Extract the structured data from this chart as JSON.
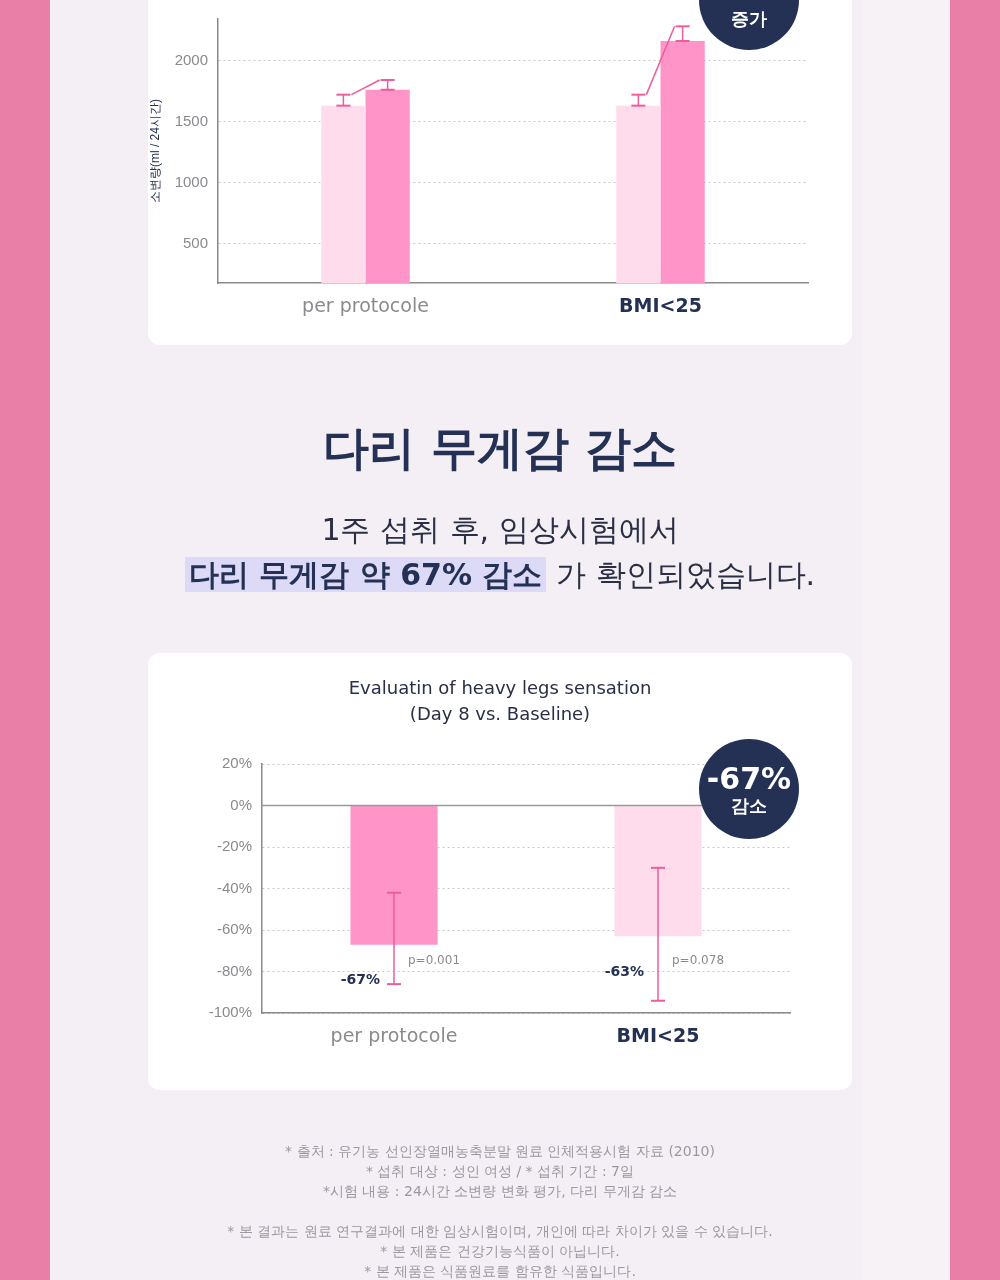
{
  "chart_data": [
    {
      "type": "bar",
      "ylabel": "소변량(ml / 24시간)",
      "categories": [
        "per protocole",
        "BMI<25"
      ],
      "series": [
        {
          "color": "#ffdcec",
          "values": [
            1630,
            1630
          ],
          "errors": [
            [
              1630,
              1720
            ],
            [
              1630,
              1720
            ]
          ]
        },
        {
          "color": "#ff94c8",
          "values": [
            1760,
            2160
          ],
          "errors": [
            [
              1760,
              1840
            ],
            [
              2160,
              2280
            ]
          ]
        }
      ],
      "ylim": [
        175,
        2340
      ],
      "yticks": [
        500,
        1000,
        1500,
        2000
      ],
      "grid": "y",
      "annotations": [
        "증가"
      ]
    },
    {
      "type": "bar",
      "title": "Evaluatin of heavy legs sensation",
      "subtitle": "(Day 8 vs. Baseline)",
      "categories": [
        "per protocole",
        "BMI<25"
      ],
      "values": [
        -67,
        -63
      ],
      "colors": [
        "#ff94c8",
        "#ffdcec"
      ],
      "errors": [
        [
          -86,
          -42
        ],
        [
          -94,
          -30
        ]
      ],
      "value_labels": [
        "-67%",
        "-63%"
      ],
      "ylim": [
        -100,
        20
      ],
      "yticks": [
        {
          "value": 20,
          "label": "20%"
        },
        {
          "value": 0,
          "label": "0%"
        },
        {
          "value": -20,
          "label": "-20%"
        },
        {
          "value": -40,
          "label": "-40%"
        },
        {
          "value": -60,
          "label": "-60%"
        },
        {
          "value": -80,
          "label": "-80%"
        },
        {
          "value": -100,
          "label": "-100%"
        }
      ],
      "grid": "y",
      "ref_lines": [
        {
          "axis": "y",
          "value": 0,
          "color": "#9a9a9a"
        }
      ],
      "annotations": [
        "다리 무게감 감소",
        "1주 섭취 후, 임상시험에서",
        "다리 무게감 약 67% 감소",
        "가 확인되었습니다.",
        {
          "text": "p=0.001",
          "x": "per protocole",
          "y": -75
        },
        {
          "text": "p=0.078",
          "x": "BMI<25",
          "y": -75
        },
        "-67%",
        "감소",
        "* 출처 : 유기농 선인장열매농축분말 원료 인체적용시험 자료 (2010)",
        "* 섭취 대상 : 성인 여성 / * 섭취 기간 : 7일",
        "*시험 내용 : 24시간 소변량 변화 평가, 다리 무게감 감소",
        "* 본 결과는 원료 연구결과에 대한 임상시험이며, 개인에 따라 차이가 있을 수 있습니다.",
        "* 본 제품은 건강기능식품이 아닙니다.",
        "* 본 제품은 식품원료를 함유한 식품입니다."
      ]
    }
  ]
}
